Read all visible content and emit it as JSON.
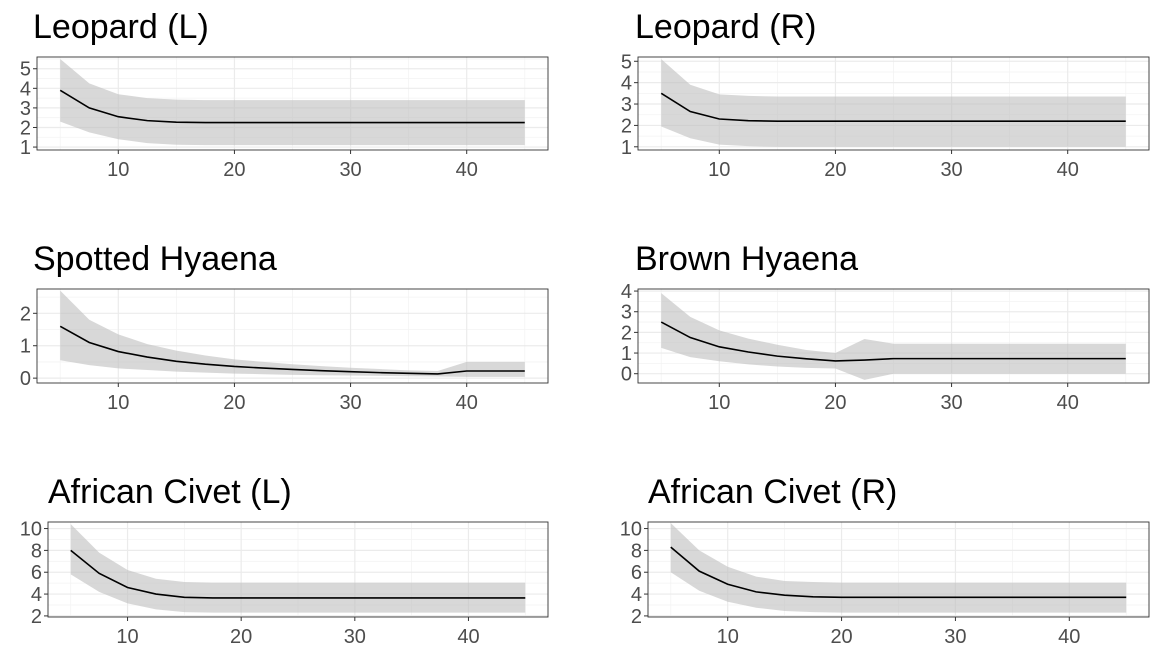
{
  "chart_data": [
    {
      "type": "line",
      "title": "Leopard (L)",
      "xlabel": "",
      "ylabel": "",
      "xlim": [
        3,
        47
      ],
      "ylim": [
        0.85,
        5.6
      ],
      "x_ticks": [
        10,
        20,
        30,
        40
      ],
      "y_ticks": [
        1,
        2,
        3,
        4,
        5
      ],
      "grid": true,
      "x": [
        5,
        7.5,
        10,
        12.5,
        15,
        17.5,
        20,
        22.5,
        25,
        27.5,
        30,
        32.5,
        35,
        37.5,
        40,
        42.5,
        45
      ],
      "series": [
        {
          "values": [
            3.9,
            3.0,
            2.55,
            2.35,
            2.27,
            2.25,
            2.25,
            2.25,
            2.25,
            2.25,
            2.25,
            2.25,
            2.25,
            2.25,
            2.25,
            2.25,
            2.25
          ],
          "lower": [
            2.3,
            1.75,
            1.4,
            1.2,
            1.12,
            1.1,
            1.1,
            1.1,
            1.1,
            1.1,
            1.1,
            1.1,
            1.1,
            1.1,
            1.1,
            1.1,
            1.1
          ],
          "upper": [
            5.5,
            4.25,
            3.7,
            3.5,
            3.42,
            3.4,
            3.4,
            3.4,
            3.4,
            3.4,
            3.4,
            3.4,
            3.4,
            3.4,
            3.4,
            3.4,
            3.4
          ]
        }
      ]
    },
    {
      "type": "line",
      "title": "Leopard (R)",
      "xlabel": "",
      "ylabel": "",
      "xlim": [
        3,
        47
      ],
      "ylim": [
        0.85,
        5.2
      ],
      "x_ticks": [
        10,
        20,
        30,
        40
      ],
      "y_ticks": [
        1,
        2,
        3,
        4,
        5
      ],
      "grid": true,
      "x": [
        5,
        7.5,
        10,
        12.5,
        15,
        17.5,
        20,
        22.5,
        25,
        27.5,
        30,
        32.5,
        35,
        37.5,
        40,
        42.5,
        45
      ],
      "series": [
        {
          "values": [
            3.5,
            2.65,
            2.3,
            2.22,
            2.2,
            2.2,
            2.2,
            2.2,
            2.2,
            2.2,
            2.2,
            2.2,
            2.2,
            2.2,
            2.2,
            2.2,
            2.2
          ],
          "lower": [
            1.95,
            1.4,
            1.1,
            1.03,
            1.0,
            1.0,
            1.0,
            1.0,
            1.0,
            1.0,
            1.0,
            1.0,
            1.0,
            1.0,
            1.0,
            1.0,
            1.0
          ],
          "upper": [
            5.1,
            3.9,
            3.45,
            3.38,
            3.35,
            3.35,
            3.35,
            3.35,
            3.35,
            3.35,
            3.35,
            3.35,
            3.35,
            3.35,
            3.35,
            3.35,
            3.35
          ]
        }
      ]
    },
    {
      "type": "line",
      "title": "Spotted Hyaena",
      "xlabel": "",
      "ylabel": "",
      "xlim": [
        3,
        47
      ],
      "ylim": [
        -0.15,
        2.75
      ],
      "x_ticks": [
        10,
        20,
        30,
        40
      ],
      "y_ticks": [
        0,
        1,
        2
      ],
      "grid": true,
      "x": [
        5,
        7.5,
        10,
        12.5,
        15,
        17.5,
        20,
        22.5,
        25,
        27.5,
        30,
        32.5,
        35,
        37.5,
        40,
        42.5,
        45
      ],
      "series": [
        {
          "values": [
            1.6,
            1.1,
            0.82,
            0.65,
            0.52,
            0.43,
            0.36,
            0.31,
            0.27,
            0.23,
            0.2,
            0.17,
            0.15,
            0.13,
            0.22,
            0.22,
            0.22
          ],
          "lower": [
            0.55,
            0.4,
            0.3,
            0.25,
            0.2,
            0.17,
            0.14,
            0.12,
            0.1,
            0.09,
            0.08,
            0.07,
            0.06,
            0.05,
            0.04,
            0.04,
            0.04
          ],
          "upper": [
            2.7,
            1.8,
            1.35,
            1.05,
            0.85,
            0.7,
            0.58,
            0.5,
            0.43,
            0.37,
            0.32,
            0.28,
            0.24,
            0.22,
            0.5,
            0.5,
            0.5
          ]
        }
      ]
    },
    {
      "type": "line",
      "title": "Brown Hyaena",
      "xlabel": "",
      "ylabel": "",
      "xlim": [
        3,
        47
      ],
      "ylim": [
        -0.45,
        4.1
      ],
      "x_ticks": [
        10,
        20,
        30,
        40
      ],
      "y_ticks": [
        0,
        1,
        2,
        3,
        4
      ],
      "grid": true,
      "x": [
        5,
        7.5,
        10,
        12.5,
        15,
        17.5,
        20,
        22.5,
        25,
        27.5,
        30,
        32.5,
        35,
        37.5,
        40,
        42.5,
        45
      ],
      "series": [
        {
          "values": [
            2.5,
            1.75,
            1.3,
            1.05,
            0.85,
            0.72,
            0.62,
            0.66,
            0.73,
            0.73,
            0.73,
            0.73,
            0.73,
            0.73,
            0.73,
            0.73,
            0.73
          ],
          "lower": [
            1.25,
            0.8,
            0.6,
            0.45,
            0.35,
            0.28,
            0.25,
            -0.3,
            0.0,
            0.0,
            0.0,
            0.0,
            0.0,
            0.0,
            0.0,
            0.0,
            0.0
          ],
          "upper": [
            3.9,
            2.75,
            2.1,
            1.7,
            1.4,
            1.15,
            1.0,
            1.68,
            1.45,
            1.45,
            1.45,
            1.45,
            1.45,
            1.45,
            1.45,
            1.45,
            1.45
          ]
        }
      ]
    },
    {
      "type": "line",
      "title": "African Civet (L)",
      "xlabel": "",
      "ylabel": "",
      "xlim": [
        3,
        47
      ],
      "ylim": [
        1.9,
        10.6
      ],
      "x_ticks": [
        10,
        20,
        30,
        40
      ],
      "y_ticks": [
        2,
        4,
        6,
        8,
        10
      ],
      "grid": true,
      "x": [
        5,
        7.5,
        10,
        12.5,
        15,
        17.5,
        20,
        22.5,
        25,
        27.5,
        30,
        32.5,
        35,
        37.5,
        40,
        42.5,
        45
      ],
      "series": [
        {
          "values": [
            8.0,
            5.9,
            4.6,
            4.0,
            3.7,
            3.65,
            3.65,
            3.65,
            3.65,
            3.65,
            3.65,
            3.65,
            3.65,
            3.65,
            3.65,
            3.65,
            3.65
          ],
          "lower": [
            5.8,
            4.2,
            3.15,
            2.6,
            2.35,
            2.3,
            2.3,
            2.3,
            2.3,
            2.3,
            2.3,
            2.3,
            2.3,
            2.3,
            2.3,
            2.3,
            2.3
          ],
          "upper": [
            10.4,
            7.8,
            6.2,
            5.4,
            5.1,
            5.05,
            5.05,
            5.05,
            5.05,
            5.05,
            5.05,
            5.05,
            5.05,
            5.05,
            5.05,
            5.05,
            5.05
          ]
        }
      ]
    },
    {
      "type": "line",
      "title": "African Civet (R)",
      "xlabel": "",
      "ylabel": "",
      "xlim": [
        3,
        47
      ],
      "ylim": [
        1.9,
        10.6
      ],
      "x_ticks": [
        10,
        20,
        30,
        40
      ],
      "y_ticks": [
        2,
        4,
        6,
        8,
        10
      ],
      "grid": true,
      "x": [
        5,
        7.5,
        10,
        12.5,
        15,
        17.5,
        20,
        22.5,
        25,
        27.5,
        30,
        32.5,
        35,
        37.5,
        40,
        42.5,
        45
      ],
      "series": [
        {
          "values": [
            8.3,
            6.1,
            4.9,
            4.2,
            3.9,
            3.75,
            3.7,
            3.7,
            3.7,
            3.7,
            3.7,
            3.7,
            3.7,
            3.7,
            3.7,
            3.7,
            3.7
          ],
          "lower": [
            6.0,
            4.3,
            3.3,
            2.75,
            2.45,
            2.35,
            2.3,
            2.3,
            2.3,
            2.3,
            2.3,
            2.3,
            2.3,
            2.3,
            2.3,
            2.3,
            2.3
          ],
          "upper": [
            10.5,
            8.0,
            6.5,
            5.6,
            5.2,
            5.1,
            5.05,
            5.05,
            5.05,
            5.05,
            5.05,
            5.05,
            5.05,
            5.05,
            5.05,
            5.05,
            5.05
          ]
        }
      ]
    }
  ]
}
